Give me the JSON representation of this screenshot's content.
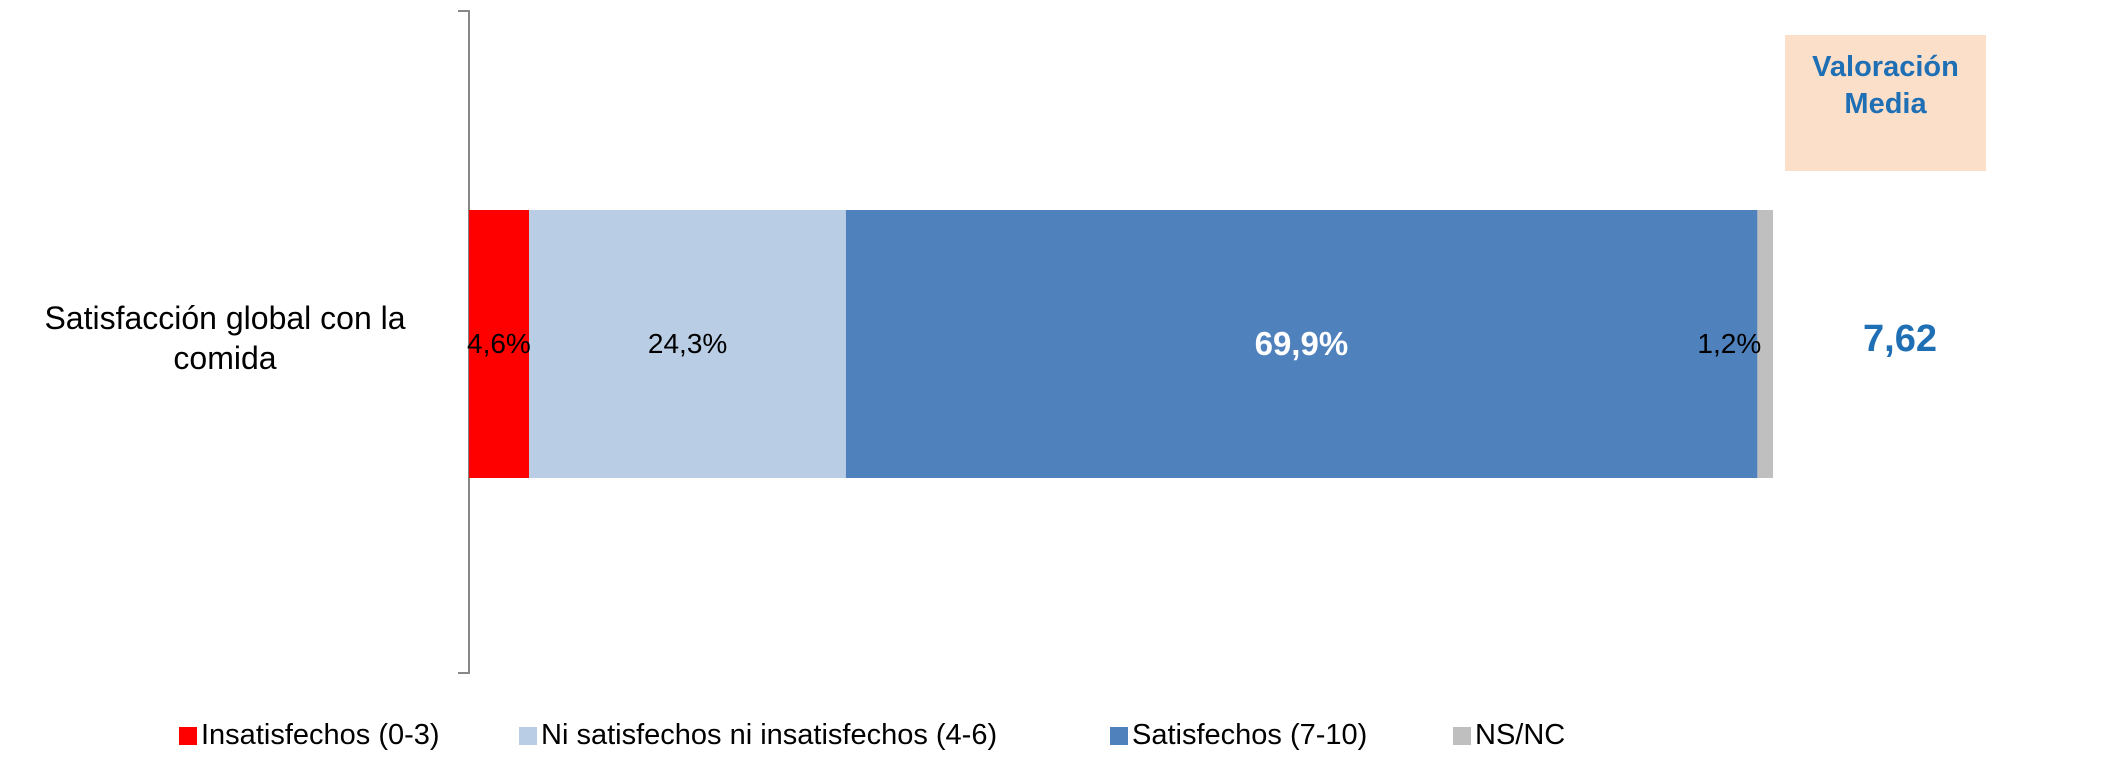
{
  "chart_data": {
    "type": "bar",
    "orientation": "horizontal",
    "stacked": true,
    "categories": [
      "Satisfacción global con la comida"
    ],
    "series": [
      {
        "name": "Insatisfechos (0-3)",
        "values": [
          4.6
        ],
        "label": "4,6%",
        "color": "#FF0000"
      },
      {
        "name": "Ni satisfechos ni insatisfechos (4-6)",
        "values": [
          24.3
        ],
        "label": "24,3%",
        "color": "#B9CDE5"
      },
      {
        "name": "Satisfechos (7-10)",
        "values": [
          69.9
        ],
        "label": "69,9%",
        "color": "#4F81BD"
      },
      {
        "name": "NS/NC",
        "values": [
          1.2
        ],
        "label": "1,2%",
        "color": "#BFBFBF"
      }
    ],
    "xlim": [
      0,
      100
    ],
    "grid": false,
    "legend_position": "bottom"
  },
  "category_label": "Satisfacción global con la comida",
  "valuation": {
    "title": "Valoración Media",
    "value": "7,62",
    "text_color": "#1F6FB5",
    "box_color": "#FBDFC9"
  }
}
